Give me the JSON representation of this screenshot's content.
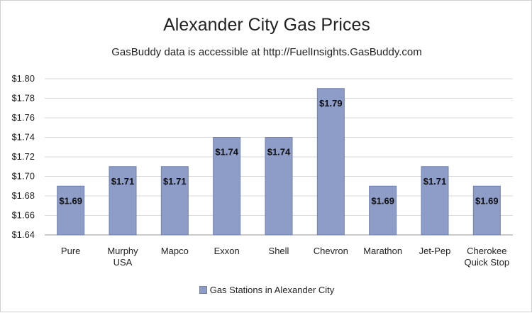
{
  "chart_data": {
    "type": "bar",
    "title": "Alexander City Gas Prices",
    "subtitle": "GasBuddy data is accessible at http://FuelInsights.GasBuddy.com",
    "categories": [
      "Pure",
      "Murphy USA",
      "Mapco",
      "Exxon",
      "Shell",
      "Chevron",
      "Marathon",
      "Jet-Pep",
      "Cherokee Quick Stop"
    ],
    "category_lines": [
      [
        "Pure"
      ],
      [
        "Murphy",
        "USA"
      ],
      [
        "Mapco"
      ],
      [
        "Exxon"
      ],
      [
        "Shell"
      ],
      [
        "Chevron"
      ],
      [
        "Marathon"
      ],
      [
        "Jet-Pep"
      ],
      [
        "Cherokee",
        "Quick Stop"
      ]
    ],
    "series": [
      {
        "name": "Gas Stations in Alexander City",
        "values": [
          1.69,
          1.71,
          1.71,
          1.74,
          1.74,
          1.79,
          1.69,
          1.71,
          1.69
        ],
        "labels": [
          "$1.69",
          "$1.71",
          "$1.71",
          "$1.74",
          "$1.74",
          "$1.79",
          "$1.69",
          "$1.71",
          "$1.69"
        ]
      }
    ],
    "ylim": [
      1.64,
      1.8
    ],
    "yticks": [
      "$1.80",
      "$1.78",
      "$1.76",
      "$1.74",
      "$1.72",
      "$1.70",
      "$1.68",
      "$1.66",
      "$1.64"
    ],
    "ytick_values": [
      1.8,
      1.78,
      1.76,
      1.74,
      1.72,
      1.7,
      1.68,
      1.66,
      1.64
    ],
    "xlabel": "",
    "ylabel": "",
    "grid": true,
    "legend_position": "bottom",
    "colors": {
      "bar_fill": "#8e9cc8",
      "bar_stroke": "#6f7fb0",
      "grid": "#d9d9d9",
      "axis": "#9a9a9a"
    }
  }
}
